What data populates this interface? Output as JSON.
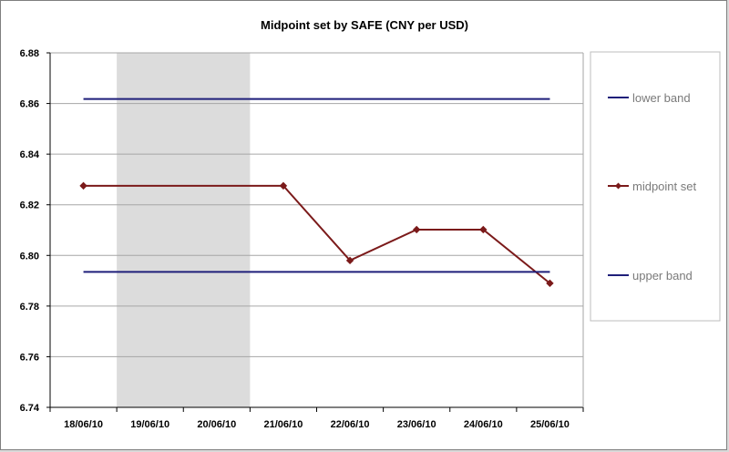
{
  "chart_data": {
    "type": "line",
    "title": "Midpoint set by SAFE (CNY per USD)",
    "categories": [
      "18/06/10",
      "19/06/10",
      "20/06/10",
      "21/06/10",
      "22/06/10",
      "23/06/10",
      "24/06/10",
      "25/06/10"
    ],
    "ylim": [
      6.74,
      6.88
    ],
    "yticks": [
      "6.74",
      "6.76",
      "6.78",
      "6.80",
      "6.82",
      "6.84",
      "6.86",
      "6.88"
    ],
    "shaded_categories": [
      "19/06/10",
      "20/06/10"
    ],
    "grid": "horizontal",
    "legend_position": "right",
    "series": [
      {
        "name": "lower band",
        "color": "#1f1f7a",
        "marker": "none",
        "values": [
          6.8618,
          6.8618,
          6.8618,
          6.8618,
          6.8618,
          6.8618,
          6.8618,
          6.8618
        ]
      },
      {
        "name": "midpoint set",
        "color": "#7b1a1a",
        "marker": "diamond",
        "values": [
          6.8275,
          6.8275,
          6.8275,
          6.8275,
          6.798,
          6.8102,
          6.8102,
          6.789
        ],
        "marker_indices": [
          0,
          3,
          4,
          5,
          6,
          7
        ]
      },
      {
        "name": "upper band",
        "color": "#1f1f7a",
        "marker": "none",
        "values": [
          6.7935,
          6.7935,
          6.7935,
          6.7935,
          6.7935,
          6.7935,
          6.7935,
          6.7935
        ]
      }
    ]
  }
}
